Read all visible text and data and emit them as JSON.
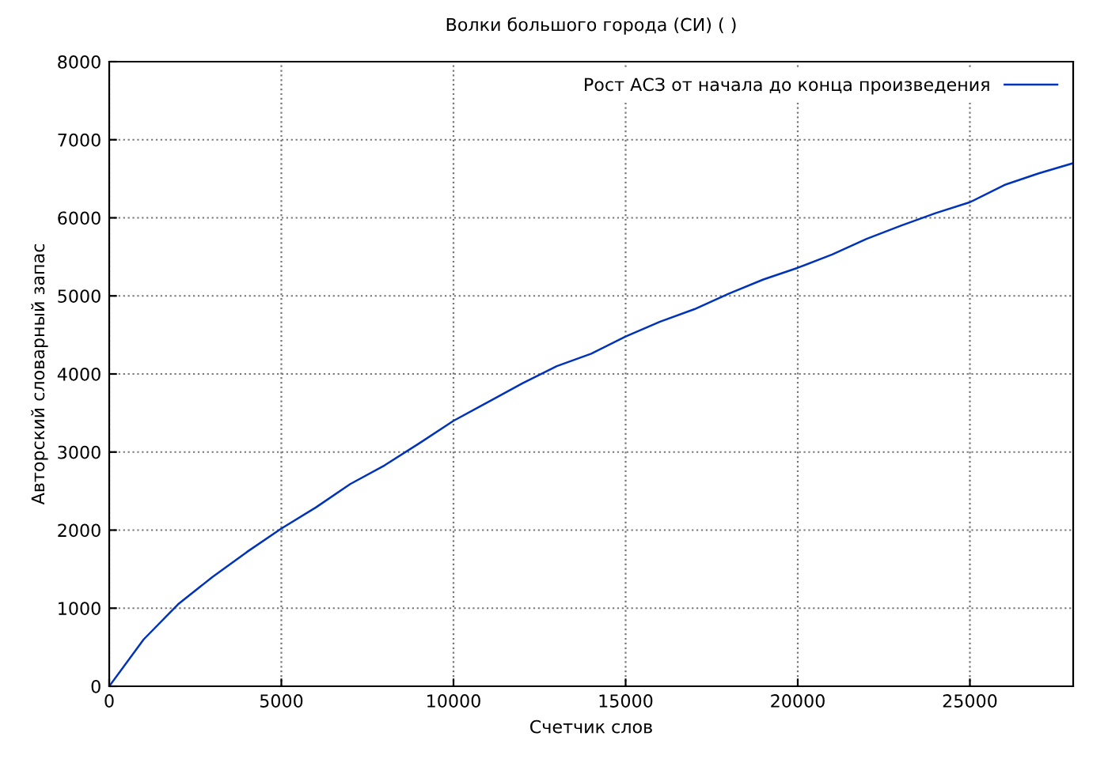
{
  "chart_data": {
    "type": "line",
    "title": "Волки большого города (СИ) ( )",
    "xlabel": "Счетчик слов",
    "ylabel": "Авторский словарный запас",
    "xlim": [
      0,
      28000
    ],
    "xticks": [
      0,
      5000,
      10000,
      15000,
      20000,
      25000
    ],
    "ylim": [
      0,
      8000
    ],
    "yticks": [
      0,
      1000,
      2000,
      3000,
      4000,
      5000,
      6000,
      7000,
      8000
    ],
    "grid": true,
    "legend": "top right",
    "marker": "none",
    "line_style": "solid",
    "series": [
      {
        "name": "Рост АСЗ от начала до конца произведения",
        "color": "#0033bb",
        "x": [
          0,
          1000,
          2000,
          3000,
          4000,
          5000,
          6000,
          7000,
          8000,
          9000,
          10000,
          11000,
          12000,
          13000,
          14000,
          15000,
          16000,
          17000,
          18000,
          19000,
          20000,
          21000,
          22000,
          23000,
          24000,
          25000,
          26000,
          27000,
          28000
        ],
        "values": [
          0,
          600,
          1050,
          1400,
          1720,
          2020,
          2290,
          2590,
          2830,
          3110,
          3400,
          3640,
          3880,
          4100,
          4260,
          4480,
          4670,
          4830,
          5030,
          5210,
          5360,
          5530,
          5730,
          5900,
          6060,
          6200,
          6420,
          6570,
          6700
        ]
      }
    ]
  }
}
